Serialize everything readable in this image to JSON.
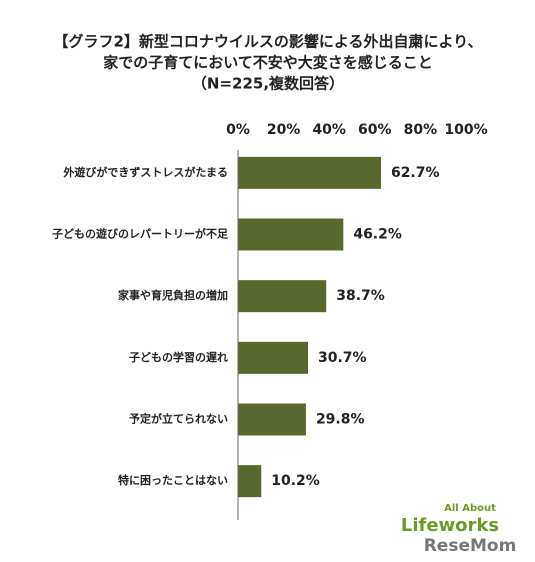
{
  "chart_data": {
    "type": "hbar",
    "title": [
      "【グラフ2】新型コロナウイルスの影響による外出自粛により、",
      "家での子育てにおいて不安や大変さを感じること",
      "（N=225,複数回答）"
    ],
    "categories": [
      "外遊びができずストレスがたまる",
      "子どもの遊びのレパートリーが不足",
      "家事や育児負担の増加",
      "子どもの学習の遅れ",
      "予定が立てられない",
      "特に困ったことはない"
    ],
    "values": [
      62.7,
      46.2,
      38.7,
      30.7,
      29.8,
      10.2
    ],
    "value_labels": [
      "62.7%",
      "46.2%",
      "38.7%",
      "30.7%",
      "29.8%",
      "10.2%"
    ],
    "color": "#58692d",
    "xlim": [
      0,
      100
    ],
    "xticks": [
      {
        "value": 0,
        "label": "0%"
      },
      {
        "value": 20,
        "label": "20%"
      },
      {
        "value": 40,
        "label": "40%"
      },
      {
        "value": 60,
        "label": "60%"
      },
      {
        "value": 80,
        "label": "80%"
      },
      {
        "value": 100,
        "label": "100%"
      }
    ],
    "grid": false
  },
  "logo": {
    "brand": "All About",
    "name": "Lifeworks",
    "site": "ReseMom"
  }
}
